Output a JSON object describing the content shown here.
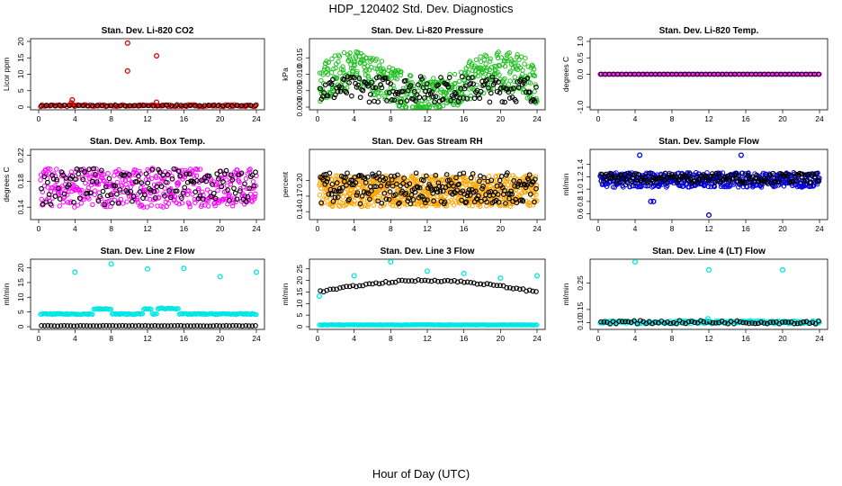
{
  "figure": {
    "title": "HDP_120402  Std. Dev. Diagnostics",
    "xlabel": "Hour of Day (UTC)"
  },
  "chart_data": [
    {
      "type": "scatter",
      "title": "Stan. Dev. Li-820 CO2",
      "ylabel": "Licor ppm",
      "color": "#e00000",
      "xlim": [
        0,
        24
      ],
      "ylim": [
        0,
        20
      ],
      "xticks": [
        "0",
        "4",
        "8",
        "12",
        "16",
        "20",
        "24"
      ],
      "yticks": [
        {
          "v": 0,
          "t": "0"
        },
        {
          "v": 5,
          "t": "5"
        },
        {
          "v": 10,
          "t": "10"
        },
        {
          "v": 15,
          "t": "15"
        },
        {
          "v": 20,
          "t": "20"
        }
      ],
      "gen": {
        "level": 0.45,
        "amp": 0.35,
        "n": 140,
        "black": 0.45,
        "blackAmp": 0.1
      },
      "points": [
        {
          "x": 3.7,
          "y": 2.2
        },
        {
          "x": 9.8,
          "y": 19.5
        },
        {
          "x": 9.8,
          "y": 11.0
        },
        {
          "x": 13.0,
          "y": 15.6
        },
        {
          "x": 13.0,
          "y": 1.5
        },
        {
          "x": 3.6,
          "y": 1.3
        }
      ]
    },
    {
      "type": "scatter",
      "title": "Stan. Dev. Li-820 Pressure",
      "ylabel": "kPa",
      "color": "#20c020",
      "xlim": [
        0,
        24
      ],
      "ylim": [
        0,
        0.02
      ],
      "xticks": [
        "0",
        "4",
        "8",
        "12",
        "16",
        "20",
        "24"
      ],
      "yticks": [
        {
          "v": 0,
          "t": "0.000"
        },
        {
          "v": 0.005,
          "t": "0.005"
        },
        {
          "v": 0.01,
          "t": "0.010"
        },
        {
          "v": 0.015,
          "t": "0.015"
        }
      ],
      "gen": {
        "level": 0.007,
        "amp": 0.006,
        "n": 520,
        "black": 0.0055,
        "blackAmp": 0.004,
        "wave": 0.004
      },
      "points": []
    },
    {
      "type": "scatter",
      "title": "Stan. Dev. Li-820 Temp.",
      "ylabel": "degrees C",
      "color": "#ff00ff",
      "xlim": [
        0,
        24
      ],
      "ylim": [
        -1,
        1
      ],
      "xticks": [
        "0",
        "4",
        "8",
        "12",
        "16",
        "20",
        "24"
      ],
      "yticks": [
        {
          "v": -1,
          "t": "-1.0"
        },
        {
          "v": 0,
          "t": "0.0"
        },
        {
          "v": 0.5,
          "t": "0.5"
        },
        {
          "v": 1,
          "t": "1.0"
        }
      ],
      "gen": {
        "level": 0,
        "amp": 0,
        "n": 160,
        "black": 0,
        "blackAmp": 0
      },
      "points": []
    },
    {
      "type": "scatter",
      "title": "Stan. Dev. Amb. Box Temp.",
      "ylabel": "degrees C",
      "color": "#ff00ff",
      "xlim": [
        0,
        24
      ],
      "ylim": [
        0.125,
        0.225
      ],
      "xticks": [
        "0",
        "4",
        "8",
        "12",
        "16",
        "20",
        "24"
      ],
      "yticks": [
        {
          "v": 0.14,
          "t": "0.14"
        },
        {
          "v": 0.18,
          "t": "0.18"
        },
        {
          "v": 0.22,
          "t": "0.22"
        }
      ],
      "gen": {
        "level": 0.17,
        "amp": 0.03,
        "n": 420,
        "black": 0.172,
        "blackAmp": 0.028
      },
      "points": []
    },
    {
      "type": "scatter",
      "title": "Stan. Dev. Gas Stream RH",
      "ylabel": "percent",
      "color": "#ffa500",
      "xlim": [
        0,
        24
      ],
      "ylim": [
        0.13,
        0.255
      ],
      "xticks": [
        "0",
        "4",
        "8",
        "12",
        "16",
        "20",
        "24"
      ],
      "yticks": [
        {
          "v": 0.14,
          "t": "0.14"
        },
        {
          "v": 0.17,
          "t": "0.17"
        },
        {
          "v": 0.2,
          "t": "0.20"
        }
      ],
      "gen": {
        "level": 0.18,
        "amp": 0.03,
        "n": 700,
        "black": 0.185,
        "blackAmp": 0.03
      },
      "points": []
    },
    {
      "type": "scatter",
      "title": "Stan. Dev. Sample Flow",
      "ylabel": "ml/min",
      "color": "#0000e0",
      "xlim": [
        0,
        24
      ],
      "ylim": [
        0.55,
        1.6
      ],
      "xticks": [
        "0",
        "4",
        "8",
        "12",
        "16",
        "20",
        "24"
      ],
      "yticks": [
        {
          "v": 0.6,
          "t": "0.6"
        },
        {
          "v": 0.8,
          "t": "0.8"
        },
        {
          "v": 1.0,
          "t": "1.0"
        },
        {
          "v": 1.2,
          "t": "1.2"
        },
        {
          "v": 1.4,
          "t": "1.4"
        }
      ],
      "gen": {
        "level": 1.15,
        "amp": 0.12,
        "n": 520,
        "black": 1.18,
        "blackAmp": 0.08
      },
      "points": [
        {
          "x": 12.0,
          "y": 0.58
        },
        {
          "x": 5.7,
          "y": 0.8
        },
        {
          "x": 6.0,
          "y": 0.8
        },
        {
          "x": 15.5,
          "y": 1.55
        },
        {
          "x": 4.5,
          "y": 1.55
        }
      ]
    },
    {
      "type": "scatter",
      "title": "Stan. Dev. Line 2 Flow",
      "ylabel": "ml/min",
      "color": "#00e5e5",
      "xlim": [
        0,
        24
      ],
      "ylim": [
        0,
        22
      ],
      "xticks": [
        "0",
        "4",
        "8",
        "12",
        "16",
        "20",
        "24"
      ],
      "yticks": [
        {
          "v": 0,
          "t": "0"
        },
        {
          "v": 5,
          "t": "5"
        },
        {
          "v": 10,
          "t": "10"
        },
        {
          "v": 15,
          "t": "15"
        },
        {
          "v": 20,
          "t": "20"
        }
      ],
      "gen": {
        "level": 4.3,
        "amp": 0.2,
        "n": 200,
        "black": 0.3,
        "blackAmp": 0.05,
        "bumps": [
          [
            6,
            8,
            6.0
          ],
          [
            11.5,
            12.5,
            6.0
          ],
          [
            13,
            15.5,
            6.2
          ]
        ]
      },
      "points": [
        {
          "x": 4.0,
          "y": 18.5
        },
        {
          "x": 8.0,
          "y": 21.3
        },
        {
          "x": 12.0,
          "y": 19.6
        },
        {
          "x": 16.0,
          "y": 19.8
        },
        {
          "x": 20.0,
          "y": 17.0
        },
        {
          "x": 24.0,
          "y": 18.5
        }
      ]
    },
    {
      "type": "scatter",
      "title": "Stan. Dev. Line 3 Flow",
      "ylabel": "ml/min",
      "color": "#00e5e5",
      "xlim": [
        0,
        24
      ],
      "ylim": [
        0,
        28
      ],
      "xticks": [
        "0",
        "4",
        "8",
        "12",
        "16",
        "20",
        "24"
      ],
      "yticks": [
        {
          "v": 0,
          "t": "0"
        },
        {
          "v": 5,
          "t": "5"
        },
        {
          "v": 10,
          "t": "10"
        },
        {
          "v": 15,
          "t": "15"
        },
        {
          "v": 20,
          "t": "20"
        },
        {
          "v": 25,
          "t": "25"
        }
      ],
      "gen": {
        "level": 0.8,
        "amp": 0.1,
        "n": 200,
        "black": "arch",
        "blackAmp": 0.4
      },
      "points": [
        {
          "x": 0.2,
          "y": 13.2
        },
        {
          "x": 4.0,
          "y": 22.0
        },
        {
          "x": 8.0,
          "y": 28.0
        },
        {
          "x": 12.0,
          "y": 24.0
        },
        {
          "x": 16.0,
          "y": 23.0
        },
        {
          "x": 20.0,
          "y": 21.0
        },
        {
          "x": 24.0,
          "y": 22.0
        }
      ]
    },
    {
      "type": "scatter",
      "title": "Stan. Dev. Line 4 (LT) Flow",
      "ylabel": "ml/min",
      "color": "#00e5e5",
      "xlim": [
        0,
        24
      ],
      "ylim": [
        0.085,
        0.33
      ],
      "xticks": [
        "0",
        "4",
        "8",
        "12",
        "16",
        "20",
        "24"
      ],
      "yticks": [
        {
          "v": 0.1,
          "t": "0.10"
        },
        {
          "v": 0.15,
          "t": "0.15"
        },
        {
          "v": 0.25,
          "t": "0.25"
        }
      ],
      "gen": {
        "level": 0.102,
        "amp": 0.006,
        "n": 220,
        "black": 0.102,
        "blackAmp": 0.006
      },
      "points": [
        {
          "x": 4.0,
          "y": 0.33
        },
        {
          "x": 12.0,
          "y": 0.3
        },
        {
          "x": 20.0,
          "y": 0.3
        },
        {
          "x": 11.9,
          "y": 0.115
        }
      ]
    }
  ]
}
